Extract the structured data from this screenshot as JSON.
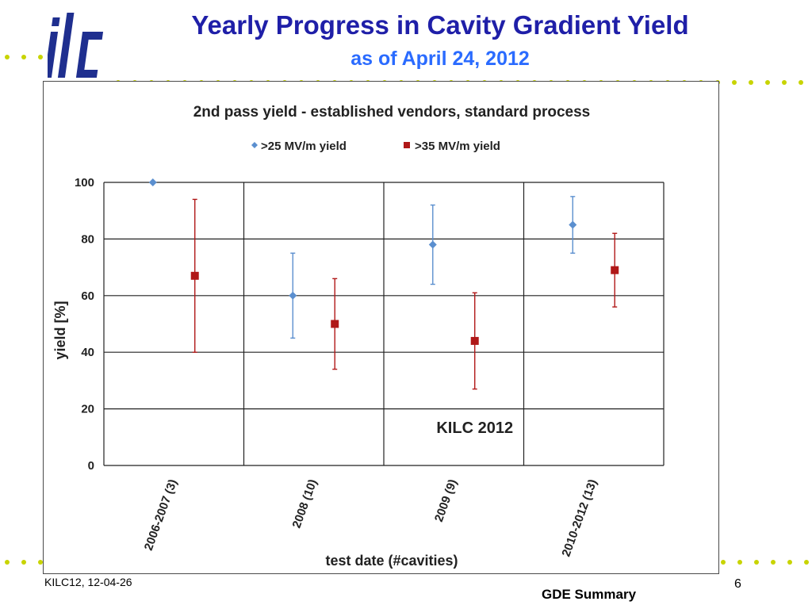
{
  "slide": {
    "title": "Yearly Progress in Cavity Gradient Yield",
    "subtitle": "as of April 24, 2012",
    "footer_left": "KILC12, 12-04-26",
    "footer_right": "GDE Summary",
    "page_number": "6",
    "logo_text": "ilc"
  },
  "colors": {
    "title": "#1f1fa8",
    "subtitle": "#2a6bff",
    "series_25": "#5b8fcf",
    "series_35": "#b01818",
    "dots": "#c8d400"
  },
  "chart_data": {
    "type": "scatter",
    "title": "2nd pass yield - established vendors, standard process",
    "xlabel": "test date (#cavities)",
    "ylabel": "yield [%]",
    "ylim": [
      0,
      100
    ],
    "yticks": [
      0,
      20,
      40,
      60,
      80,
      100
    ],
    "grid": true,
    "legend_position": "top-center",
    "annotation": "KILC 2012",
    "categories": [
      "2006-2007 (3)",
      "2008 (10)",
      "2009 (9)",
      "2010-2012 (13)"
    ],
    "series": [
      {
        "name": ">25 MV/m yield",
        "marker": "diamond",
        "values": [
          100,
          60,
          78,
          85
        ],
        "error_low": [
          100,
          45,
          64,
          75
        ],
        "error_high": [
          100,
          75,
          92,
          95
        ]
      },
      {
        "name": ">35 MV/m yield",
        "marker": "square",
        "values": [
          67,
          50,
          44,
          69
        ],
        "error_low": [
          40,
          34,
          27,
          56
        ],
        "error_high": [
          94,
          66,
          61,
          82
        ]
      }
    ]
  }
}
